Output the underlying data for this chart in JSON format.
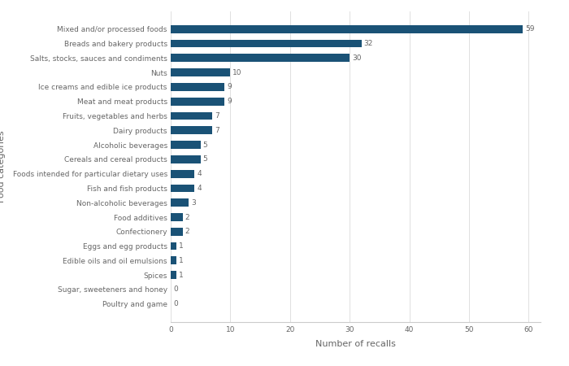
{
  "categories": [
    "Poultry and game",
    "Sugar, sweeteners and honey",
    "Spices",
    "Edible oils and oil emulsions",
    "Eggs and egg products",
    "Confectionery",
    "Food additives",
    "Non-alcoholic beverages",
    "Fish and fish products",
    "Foods intended for particular dietary uses",
    "Cereals and cereal products",
    "Alcoholic beverages",
    "Dairy products",
    "Fruits, vegetables and herbs",
    "Meat and meat products",
    "Ice creams and edible ice products",
    "Nuts",
    "Salts, stocks, sauces and condiments",
    "Breads and bakery products",
    "Mixed and/or processed foods"
  ],
  "values": [
    0,
    0,
    1,
    1,
    1,
    2,
    2,
    3,
    4,
    4,
    5,
    5,
    7,
    7,
    9,
    9,
    10,
    30,
    32,
    59
  ],
  "bar_color": "#1a5276",
  "xlabel": "Number of recalls",
  "ylabel": "Food categories",
  "xlim": [
    0,
    62
  ],
  "xticks": [
    0,
    10,
    20,
    30,
    40,
    50,
    60
  ],
  "background_color": "#ffffff",
  "bar_height": 0.55,
  "label_fontsize": 6.5,
  "axis_label_fontsize": 8,
  "tick_fontsize": 6.5,
  "ytick_fontsize": 6.5
}
